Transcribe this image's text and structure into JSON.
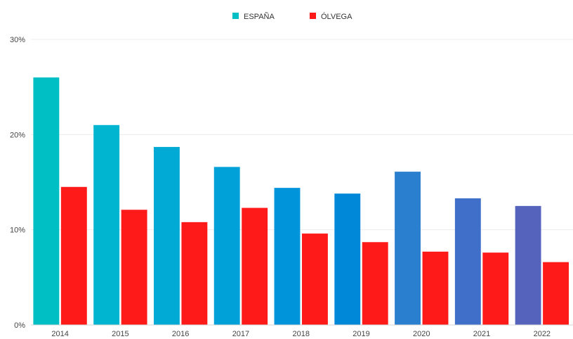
{
  "chart_data": {
    "type": "bar",
    "categories": [
      "2014",
      "2015",
      "2016",
      "2017",
      "2018",
      "2019",
      "2020",
      "2021",
      "2022"
    ],
    "series": [
      {
        "name": "ESPAÑA",
        "values": [
          26,
          21,
          18.7,
          16.6,
          14.4,
          13.8,
          16.1,
          13.3,
          12.5
        ],
        "colors": [
          "#00bfc4",
          "#00b5cf",
          "#00aad5",
          "#00a1d8",
          "#0094da",
          "#0088d8",
          "#2a7fce",
          "#3f6fc8",
          "#5563bd"
        ]
      },
      {
        "name": "ÓLVEGA",
        "values": [
          14.5,
          12.1,
          10.8,
          12.3,
          9.6,
          8.7,
          7.7,
          7.6,
          6.6
        ],
        "color": "#ff1a1a"
      }
    ],
    "yticks": [
      "0%",
      "10%",
      "20%",
      "30%"
    ],
    "ylim": [
      0,
      30
    ],
    "legend": "top-center",
    "grid": true
  }
}
